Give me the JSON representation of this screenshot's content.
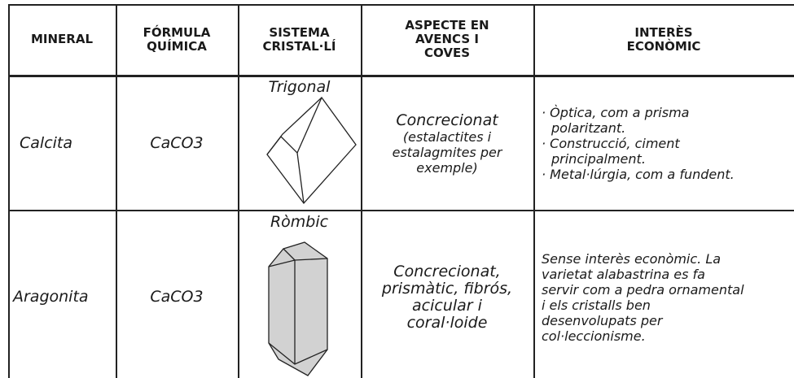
{
  "table": {
    "header": [
      [
        "MINERAL"
      ],
      [
        "FÓRMULA",
        "QUÍMICA"
      ],
      [
        "SISTEMA",
        "CRISTAL·LÍ"
      ],
      [
        "ASPECTE EN",
        "AVENCS I",
        "COVES"
      ],
      [
        "INTERÈS",
        "ECONÒMIC"
      ]
    ],
    "rows": [
      {
        "mineral": "Calcita",
        "formula": "CaCO3",
        "system": "Trigonal",
        "aspect": [
          "Concrecionat",
          "(estalactites i",
          "estalagmites per",
          "exemple)"
        ],
        "interest": [
          "· Òptica, com a prisma",
          "polaritzant.",
          "· Construcció, ciment",
          "principalment.",
          "· Metal·lúrgia, com a fundent."
        ]
      },
      {
        "mineral": "Aragonita",
        "formula": "CaCO3",
        "system": "Ròmbic",
        "aspect": [
          "Concrecionat,",
          "prismàtic, fibrós,",
          "acicular i",
          "coral·loide"
        ],
        "interest": [
          "Sense interès econòmic. La",
          "varietat alabastrina es fa",
          "servir com a pedra ornamental",
          "i els cristalls ben",
          "desenvolupats per",
          "col·leccionisme."
        ]
      }
    ]
  }
}
